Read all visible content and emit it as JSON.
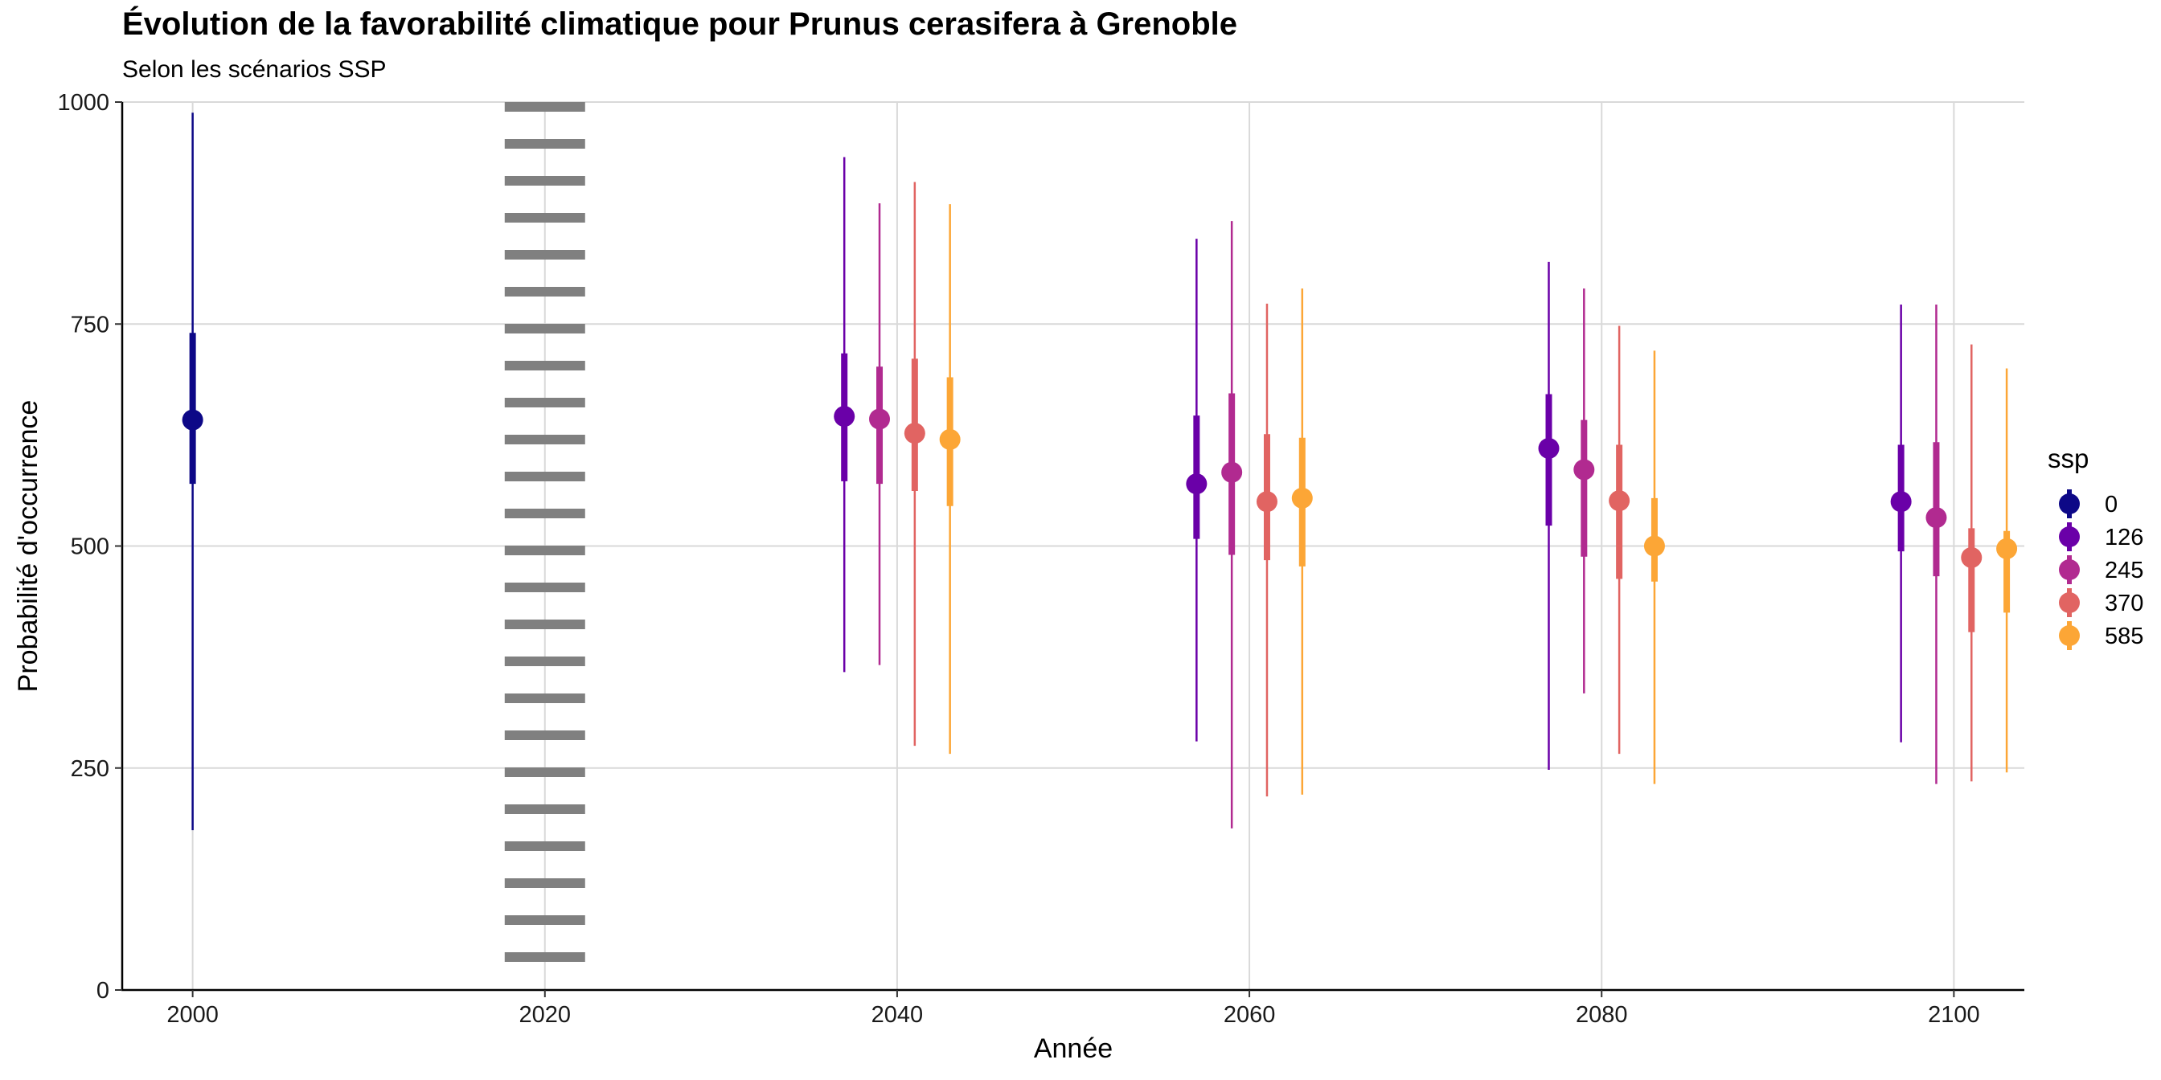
{
  "chart_data": {
    "type": "scatter",
    "title": "Évolution de la favorabilité climatique pour Prunus cerasifera à Grenoble",
    "subtitle": "Selon les scénarios SSP",
    "xlabel": "Année",
    "ylabel": "Probabilité d'occurrence",
    "xlim": [
      1996,
      2104
    ],
    "ylim": [
      0,
      1000
    ],
    "x_ticks": [
      2000,
      2020,
      2040,
      2060,
      2080,
      2100
    ],
    "y_ticks": [
      0,
      250,
      500,
      750,
      1000
    ],
    "grid": true,
    "reference_line": {
      "x": 2020,
      "style": "dotted"
    },
    "legend": {
      "title": "ssp",
      "position": "right"
    },
    "series": [
      {
        "name": "0",
        "color": "#0d0887",
        "points": [
          {
            "x": 2000,
            "y": 642,
            "inner": [
              570,
              740
            ],
            "outer": [
              180,
              988
            ]
          }
        ]
      },
      {
        "name": "126",
        "color": "#6a00a8",
        "points": [
          {
            "x": 2037,
            "y": 646,
            "inner": [
              573,
              717
            ],
            "outer": [
              358,
              938
            ]
          },
          {
            "x": 2057,
            "y": 570,
            "inner": [
              508,
              647
            ],
            "outer": [
              280,
              846
            ]
          },
          {
            "x": 2077,
            "y": 610,
            "inner": [
              523,
              671
            ],
            "outer": [
              248,
              820
            ]
          },
          {
            "x": 2097,
            "y": 550,
            "inner": [
              494,
              614
            ],
            "outer": [
              279,
              772
            ]
          }
        ]
      },
      {
        "name": "245",
        "color": "#b12a90",
        "points": [
          {
            "x": 2039,
            "y": 643,
            "inner": [
              570,
              702
            ],
            "outer": [
              366,
              886
            ]
          },
          {
            "x": 2059,
            "y": 583,
            "inner": [
              490,
              672
            ],
            "outer": [
              182,
              866
            ]
          },
          {
            "x": 2079,
            "y": 586,
            "inner": [
              488,
              642
            ],
            "outer": [
              334,
              790
            ]
          },
          {
            "x": 2099,
            "y": 532,
            "inner": [
              466,
              617
            ],
            "outer": [
              232,
              772
            ]
          }
        ]
      },
      {
        "name": "370",
        "color": "#e16462",
        "points": [
          {
            "x": 2041,
            "y": 627,
            "inner": [
              562,
              711
            ],
            "outer": [
              275,
              910
            ]
          },
          {
            "x": 2061,
            "y": 550,
            "inner": [
              484,
              626
            ],
            "outer": [
              218,
              773
            ]
          },
          {
            "x": 2081,
            "y": 551,
            "inner": [
              463,
              614
            ],
            "outer": [
              266,
              748
            ]
          },
          {
            "x": 2101,
            "y": 487,
            "inner": [
              403,
              520
            ],
            "outer": [
              235,
              727
            ]
          }
        ]
      },
      {
        "name": "585",
        "color": "#fca636",
        "points": [
          {
            "x": 2043,
            "y": 620,
            "inner": [
              545,
              690
            ],
            "outer": [
              266,
              885
            ]
          },
          {
            "x": 2063,
            "y": 554,
            "inner": [
              477,
              622
            ],
            "outer": [
              220,
              790
            ]
          },
          {
            "x": 2083,
            "y": 500,
            "inner": [
              460,
              554
            ],
            "outer": [
              232,
              720
            ]
          },
          {
            "x": 2103,
            "y": 497,
            "inner": [
              425,
              517
            ],
            "outer": [
              245,
              700
            ]
          }
        ]
      }
    ]
  }
}
